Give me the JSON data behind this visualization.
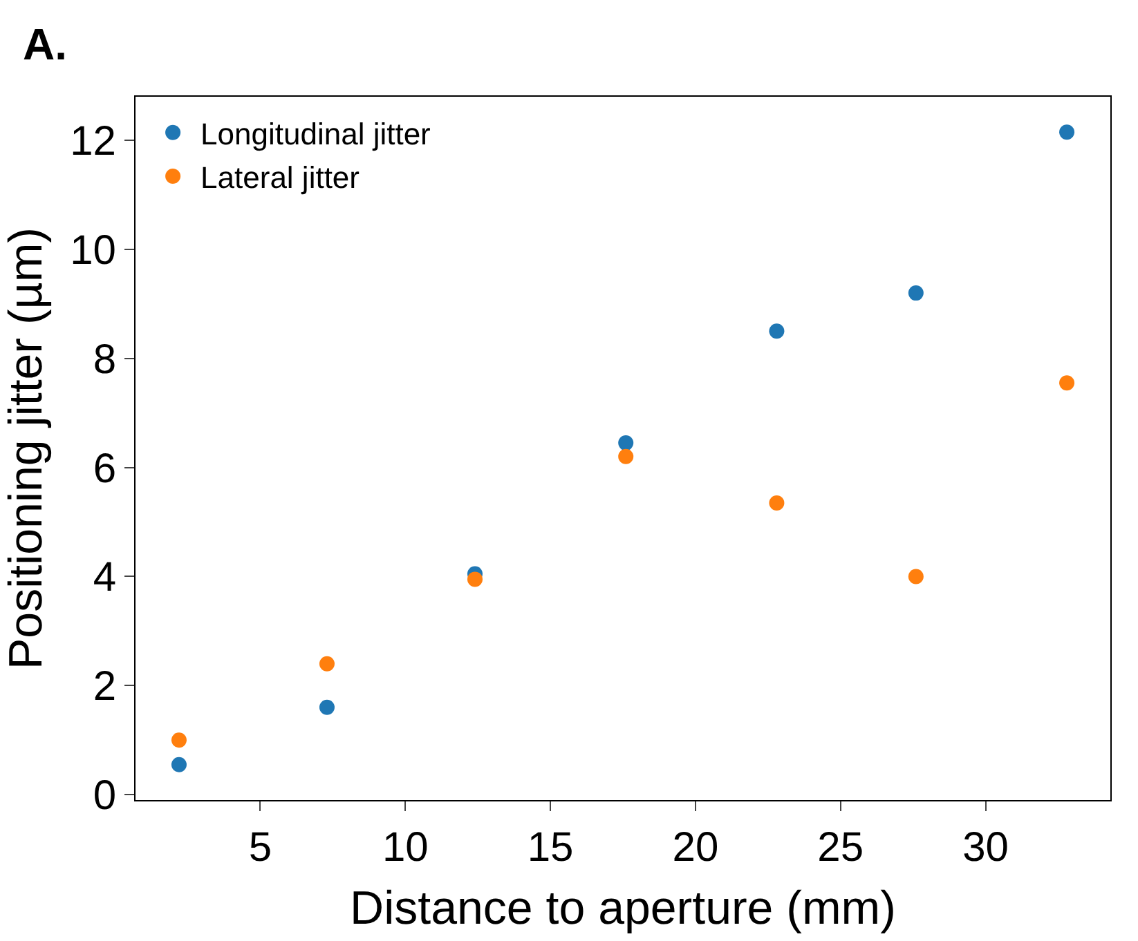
{
  "chart_data": {
    "type": "scatter",
    "title": "A.",
    "xlabel": "Distance to aperture (mm)",
    "ylabel": "Positioning jitter (µm)",
    "x": [
      2.2,
      7.3,
      12.4,
      17.6,
      22.8,
      27.6,
      32.8
    ],
    "series": [
      {
        "name": "Longitudinal jitter",
        "color": "#1f77b4",
        "values": [
          0.55,
          1.6,
          4.05,
          6.45,
          8.5,
          9.2,
          12.15
        ]
      },
      {
        "name": "Lateral jitter",
        "color": "#ff7f0e",
        "values": [
          1.0,
          2.4,
          3.95,
          6.2,
          5.35,
          4.0,
          7.55
        ]
      }
    ],
    "xlim": [
      0.7,
      34.3
    ],
    "ylim": [
      -0.1,
      12.8
    ],
    "xticks": [
      5,
      10,
      15,
      20,
      25,
      30
    ],
    "yticks": [
      0,
      2,
      4,
      6,
      8,
      10,
      12
    ],
    "legend": "top left",
    "marker": "circle"
  }
}
